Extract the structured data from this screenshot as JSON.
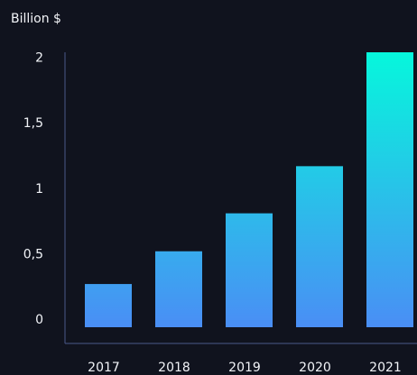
{
  "chart_data": {
    "type": "bar",
    "ylabel": "Billion $",
    "categories": [
      "2017",
      "2018",
      "2019",
      "2020",
      "2021"
    ],
    "values": [
      0.33,
      0.58,
      0.87,
      1.23,
      2.1
    ],
    "ylim": [
      0,
      2.1
    ],
    "yticks": [
      {
        "value": 0,
        "label": "0"
      },
      {
        "value": 0.5,
        "label": "0,5"
      },
      {
        "value": 1,
        "label": "1"
      },
      {
        "value": 1.5,
        "label": "1,5"
      },
      {
        "value": 2,
        "label": "2"
      }
    ],
    "grid": false,
    "legend": "none",
    "colors": {
      "background": "#10131e",
      "axis": "#4a5a8a",
      "bar_bottom": "#4a8ef5",
      "bar_top": "#06f7dc",
      "text": "#f2f4f8"
    }
  }
}
